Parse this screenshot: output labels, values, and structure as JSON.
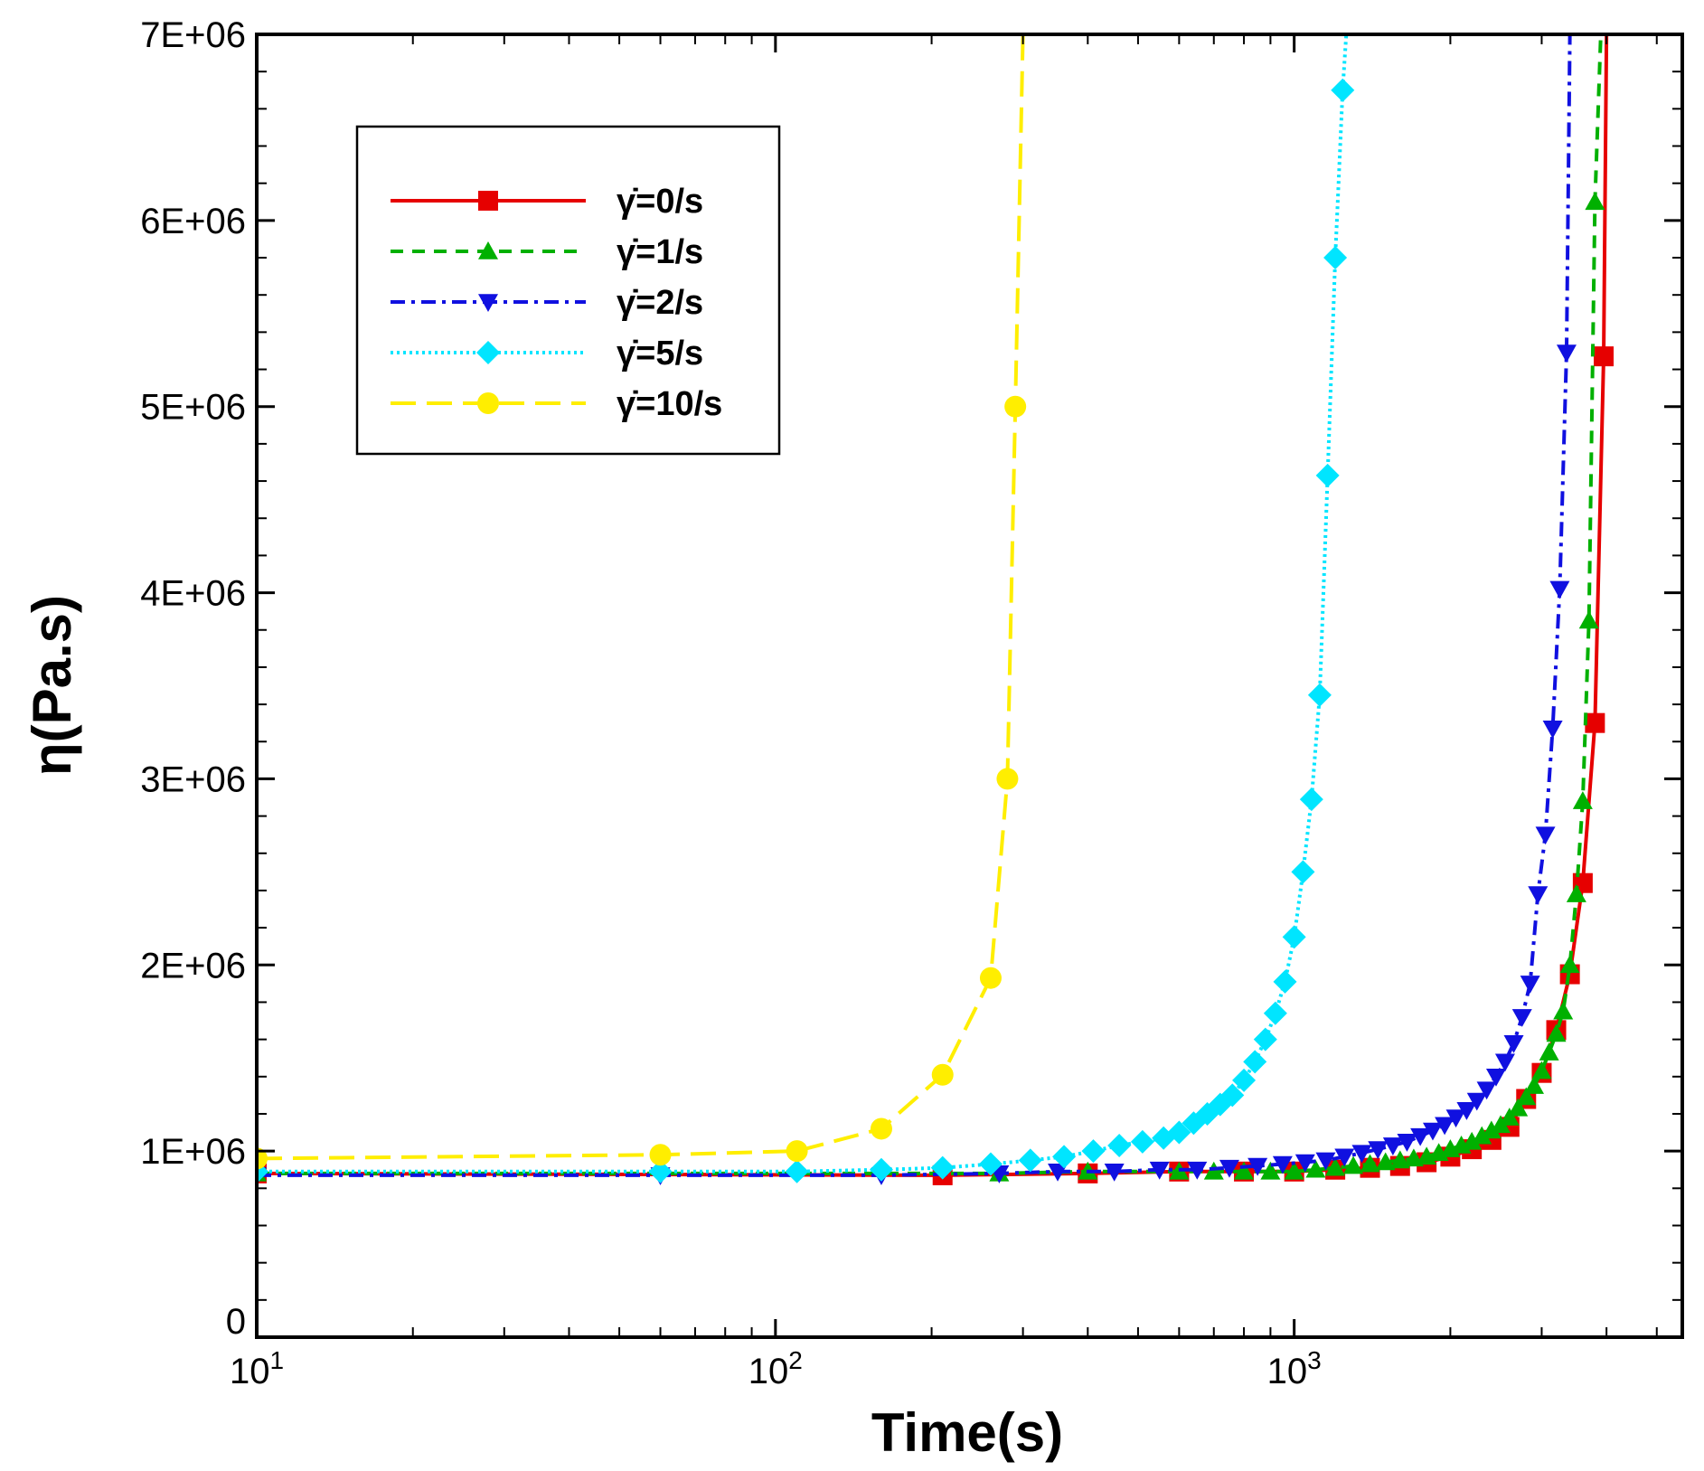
{
  "chart_data": {
    "type": "line",
    "title": "",
    "xlabel": "Time(s)",
    "ylabel": "η(Pa.s)",
    "xscale": "log",
    "xlim": [
      10,
      5600
    ],
    "ylim": [
      0,
      7000000
    ],
    "grid": false,
    "legend_position": "top-left",
    "x_tick_labels": [
      {
        "base": "10",
        "exp": "1"
      },
      {
        "base": "10",
        "exp": "2"
      },
      {
        "base": "10",
        "exp": "3"
      }
    ],
    "y_tick_labels": [
      "0",
      "1E+06",
      "2E+06",
      "3E+06",
      "4E+06",
      "5E+06",
      "6E+06",
      "7E+06"
    ],
    "series": [
      {
        "name": "γ̇=0/s",
        "color": "#e60000",
        "dash": "solid",
        "marker": "square",
        "x": [
          10,
          210,
          400,
          600,
          800,
          1000,
          1200,
          1400,
          1600,
          1800,
          2000,
          2200,
          2400,
          2600,
          2800,
          3000,
          3200,
          3400,
          3600,
          3800,
          3950,
          4000
        ],
        "y": [
          880000,
          870000,
          880000,
          890000,
          890000,
          890000,
          900000,
          910000,
          920000,
          940000,
          970000,
          1010000,
          1060000,
          1130000,
          1280000,
          1420000,
          1650000,
          1950000,
          2440000,
          3300000,
          5270000,
          7000000
        ]
      },
      {
        "name": "γ̇=1/s",
        "color": "#00b000",
        "dash": "dashed",
        "marker": "triangle-up",
        "x": [
          10,
          270,
          400,
          600,
          700,
          800,
          900,
          1000,
          1100,
          1200,
          1300,
          1400,
          1500,
          1600,
          1700,
          1800,
          1900,
          2000,
          2100,
          2200,
          2300,
          2400,
          2500,
          2600,
          2700,
          2800,
          2900,
          3000,
          3100,
          3200,
          3300,
          3400,
          3500,
          3600,
          3700,
          3800,
          3900
        ],
        "y": [
          880000,
          880000,
          890000,
          890000,
          890000,
          890000,
          890000,
          890000,
          900000,
          910000,
          920000,
          930000,
          940000,
          950000,
          960000,
          970000,
          990000,
          1010000,
          1030000,
          1050000,
          1080000,
          1110000,
          1140000,
          1180000,
          1230000,
          1290000,
          1350000,
          1430000,
          1530000,
          1630000,
          1750000,
          2000000,
          2380000,
          2880000,
          3850000,
          6100000,
          7000000
        ]
      },
      {
        "name": "γ̇=2/s",
        "color": "#1010e0",
        "dash": "dashdot",
        "marker": "triangle-down",
        "x": [
          10,
          60,
          160,
          270,
          350,
          450,
          550,
          650,
          750,
          850,
          950,
          1050,
          1150,
          1250,
          1350,
          1450,
          1550,
          1650,
          1750,
          1850,
          1950,
          2050,
          2150,
          2250,
          2350,
          2450,
          2550,
          2650,
          2750,
          2850,
          2950,
          3050,
          3150,
          3250,
          3350,
          3400
        ],
        "y": [
          870000,
          870000,
          870000,
          880000,
          890000,
          890000,
          900000,
          900000,
          910000,
          920000,
          930000,
          940000,
          950000,
          970000,
          990000,
          1010000,
          1030000,
          1050000,
          1080000,
          1110000,
          1140000,
          1180000,
          1220000,
          1270000,
          1330000,
          1400000,
          1480000,
          1580000,
          1720000,
          1900000,
          2380000,
          2700000,
          3270000,
          4020000,
          5290000,
          7000000
        ]
      },
      {
        "name": "γ̇=5/s",
        "color": "#00e5ff",
        "dash": "dotted",
        "marker": "diamond",
        "x": [
          10,
          60,
          110,
          160,
          210,
          260,
          310,
          360,
          410,
          460,
          510,
          560,
          600,
          640,
          680,
          720,
          760,
          800,
          840,
          880,
          920,
          960,
          1000,
          1040,
          1080,
          1120,
          1160,
          1200,
          1240,
          1260
        ],
        "y": [
          890000,
          890000,
          890000,
          900000,
          910000,
          930000,
          950000,
          970000,
          1000000,
          1030000,
          1050000,
          1070000,
          1100000,
          1150000,
          1200000,
          1250000,
          1300000,
          1380000,
          1480000,
          1600000,
          1740000,
          1910000,
          2150000,
          2500000,
          2890000,
          3450000,
          4630000,
          5800000,
          6700000,
          7000000
        ]
      },
      {
        "name": "γ̇=10/s",
        "color": "#ffee00",
        "dash": "longdash",
        "marker": "circle",
        "x": [
          10,
          60,
          110,
          160,
          210,
          260,
          280,
          290,
          300
        ],
        "y": [
          960000,
          980000,
          1000000,
          1120000,
          1410000,
          1930000,
          3000000,
          5000000,
          7000000
        ]
      }
    ]
  }
}
